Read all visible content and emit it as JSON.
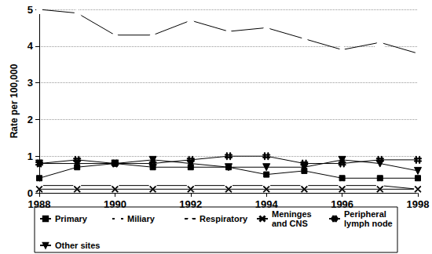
{
  "chart_data": {
    "type": "line",
    "y_label": "Rate per 100,000",
    "x": [
      1988,
      1989,
      1990,
      1991,
      1992,
      1993,
      1994,
      1995,
      1996,
      1997,
      1998
    ],
    "xlim": [
      1988,
      1998
    ],
    "xticks": [
      1988,
      1990,
      1992,
      1994,
      1996,
      1998
    ],
    "ylim": [
      0,
      5
    ],
    "yticks": [
      0,
      1,
      2,
      3,
      4,
      5
    ],
    "grid": true,
    "legend": "bottom",
    "series": [
      {
        "name": "Primary",
        "color": "#000000",
        "marker": "square",
        "values": [
          0.4,
          0.7,
          0.8,
          0.7,
          0.7,
          0.7,
          0.5,
          0.6,
          0.4,
          0.4,
          0.4
        ]
      },
      {
        "name": "Miliary",
        "color": "#000000",
        "marker": "circle-open",
        "values": [
          0.2,
          0.2,
          0.2,
          0.2,
          0.2,
          0.2,
          0.2,
          0.2,
          0.2,
          0.2,
          0.1
        ]
      },
      {
        "name": "Respiratory",
        "color": "#000000",
        "marker": "triangle-open",
        "values": [
          5.0,
          4.9,
          4.3,
          4.3,
          4.7,
          4.4,
          4.5,
          4.2,
          3.9,
          4.1,
          3.8
        ]
      },
      {
        "name": "Meninges and CNS",
        "color": "#000000",
        "marker": "x",
        "values": [
          0.1,
          0.1,
          0.1,
          0.1,
          0.1,
          0.1,
          0.1,
          0.1,
          0.1,
          0.1,
          0.1
        ]
      },
      {
        "name": "Peripheral lymph node",
        "color": "#000000",
        "marker": "hash",
        "values": [
          0.8,
          0.9,
          0.8,
          0.8,
          0.9,
          1.0,
          1.0,
          0.8,
          0.8,
          0.9,
          0.9
        ]
      },
      {
        "name": "Other sites",
        "color": "#000000",
        "marker": "triangle-down",
        "values": [
          0.8,
          0.8,
          0.8,
          0.9,
          0.8,
          0.7,
          0.7,
          0.7,
          0.9,
          0.8,
          0.6
        ]
      }
    ]
  }
}
